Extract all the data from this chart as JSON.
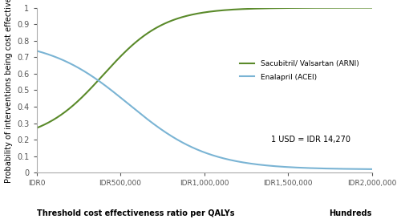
{
  "title": "",
  "ylabel": "Probability of interventions being cost effective",
  "xlabel": "Threshold cost effectiveness ratio per QALYs",
  "xlabel_right": "Hundreds",
  "annotation": "1 USD = IDR 14,270",
  "x_max": 2000000,
  "x_ticks": [
    0,
    500000,
    1000000,
    1500000,
    2000000
  ],
  "x_tick_labels": [
    "IDR0",
    "IDR500,000",
    "IDR1,000,000",
    "IDR1,500,000",
    "IDR2,000,000"
  ],
  "y_ticks": [
    0,
    0.1,
    0.2,
    0.3,
    0.4,
    0.5,
    0.6,
    0.7,
    0.8,
    0.9,
    1
  ],
  "y_tick_labels": [
    "0",
    "0.1",
    "0.2",
    "0.3",
    "0.4",
    "0.5",
    "0.6",
    "0.7",
    "0.8",
    "0.9",
    "1"
  ],
  "arni_color": "#5a8a2a",
  "acei_color": "#7ab4d4",
  "legend_arni": "Sacubitril/ Valsartan (ARNI)",
  "legend_acei": "Enalapril (ACEI)",
  "figsize": [
    5.0,
    2.78
  ],
  "dpi": 100
}
